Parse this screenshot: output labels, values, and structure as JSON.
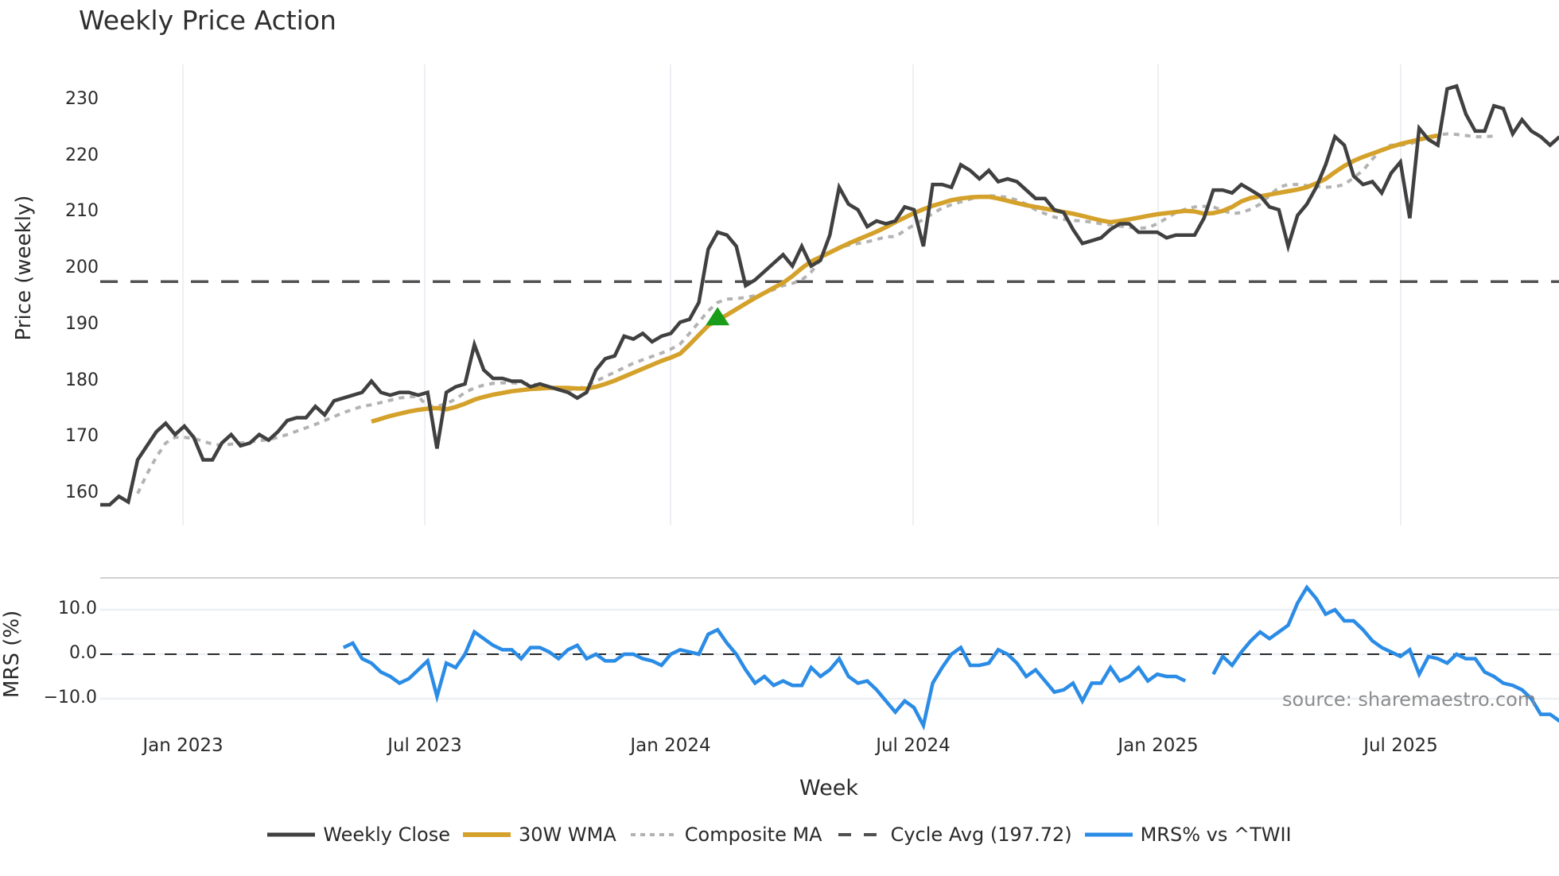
{
  "title": "Weekly Price Action",
  "source_note": "source: sharemaestro.com",
  "colors": {
    "weekly_close": "#404040",
    "wma": "#d4a12a",
    "composite_ma": "#b3b3b3",
    "cycle_avg": "#505050",
    "mrs": "#2b8ce6",
    "signal_marker": "#1a9e1a",
    "grid": "#eceff3",
    "divider": "#d0d0d0"
  },
  "price_panel": {
    "ylabel": "Price (weekly)",
    "yticks": [
      "230",
      "220",
      "210",
      "200",
      "190",
      "180",
      "170",
      "160"
    ],
    "ytick_values": [
      230,
      220,
      210,
      200,
      190,
      180,
      170,
      160
    ]
  },
  "mrs_panel": {
    "ylabel": "MRS (%)",
    "yticks": [
      "10.0",
      "0.0",
      "−10.0"
    ],
    "ytick_values": [
      10,
      0,
      -10
    ]
  },
  "xaxis": {
    "xlabel": "Week",
    "ticks": [
      "Jan 2023",
      "Jul 2023",
      "Jan 2024",
      "Jul 2024",
      "Jan 2025",
      "Jul 2025"
    ]
  },
  "legend": [
    {
      "label": "Weekly Close",
      "style": "solid",
      "color_key": "weekly_close"
    },
    {
      "label": "30W WMA",
      "style": "solid-thick",
      "color_key": "wma"
    },
    {
      "label": "Composite MA",
      "style": "dotted",
      "color_key": "composite_ma"
    },
    {
      "label": "Cycle Avg (197.72)",
      "style": "dashed",
      "color_key": "cycle_avg"
    },
    {
      "label": "MRS% vs ^TWII",
      "style": "solid",
      "color_key": "mrs"
    }
  ],
  "chart_data": [
    {
      "type": "line",
      "title": "Weekly Price Action",
      "xlabel": "Week",
      "ylabel": "Price (weekly)",
      "ylim": [
        155,
        236
      ],
      "x_start": "2022-11-01",
      "x_step": "1 week",
      "x_tick_labels": [
        "Jan 2023",
        "Jul 2023",
        "Jan 2024",
        "Jul 2024",
        "Jan 2025",
        "Jul 2025"
      ],
      "grid": "vertical only",
      "legend_position": "bottom",
      "series": [
        {
          "name": "Weekly Close",
          "start_index": 0,
          "values": [
            158,
            158,
            159.5,
            158.5,
            166,
            168.5,
            171,
            172.5,
            170.5,
            172,
            170,
            166,
            166,
            169,
            170.5,
            168.5,
            169,
            170.5,
            169.5,
            171,
            173,
            173.5,
            173.5,
            175.5,
            174,
            176.5,
            177,
            177.5,
            178,
            180,
            178,
            177.5,
            178,
            178,
            177.5,
            178,
            168,
            178,
            179,
            179.5,
            186.5,
            182,
            180.5,
            180.5,
            180,
            180,
            179,
            179.5,
            179,
            178.5,
            178,
            177,
            178,
            182,
            184,
            184.5,
            188,
            187.5,
            188.5,
            187,
            188,
            188.5,
            190.5,
            191,
            194,
            203.5,
            206.5,
            206,
            204,
            197,
            198,
            199.5,
            201,
            202.5,
            200.5,
            204,
            200.5,
            201.5,
            206,
            214.5,
            211.5,
            210.5,
            207.5,
            208.5,
            208,
            208.5,
            211,
            210.5,
            204,
            215,
            215,
            214.5,
            218.5,
            217.5,
            216,
            217.5,
            215.5,
            216,
            215.5,
            214,
            212.5,
            212.5,
            210.5,
            210,
            207,
            204.5,
            205,
            205.5,
            207,
            208,
            208,
            206.5,
            206.5,
            206.5,
            205.5,
            206,
            206,
            206,
            209,
            214,
            214,
            213.5,
            215,
            214,
            213,
            211,
            210.5,
            204,
            209.5,
            211.5,
            214.5,
            218.5,
            223.5,
            222,
            216.5,
            215,
            215.5,
            213.5,
            217,
            219,
            209,
            225,
            223,
            222,
            232,
            232.5,
            227.5,
            224.5,
            224.5,
            229,
            228.5,
            224,
            226.5,
            224.5,
            223.5,
            222,
            223.5
          ]
        },
        {
          "name": "30W WMA",
          "start_index": 29,
          "values": [
            172.8,
            173.3,
            173.8,
            174.2,
            174.6,
            174.9,
            175.1,
            175.2,
            175,
            175.4,
            176,
            176.7,
            177.2,
            177.6,
            177.9,
            178.2,
            178.4,
            178.6,
            178.7,
            178.8,
            178.8,
            178.8,
            178.7,
            178.7,
            179,
            179.5,
            180.1,
            180.8,
            181.5,
            182.2,
            182.9,
            183.6,
            184.2,
            184.9,
            186.5,
            188.2,
            189.9,
            190.8,
            191.8,
            192.8,
            193.8,
            194.8,
            195.7,
            196.6,
            197.5,
            198.7,
            200.1,
            201.3,
            202.1,
            202.9,
            203.7,
            204.5,
            205.2,
            205.9,
            206.6,
            207.4,
            208.3,
            209.1,
            209.9,
            210.6,
            211.2,
            211.7,
            212.2,
            212.5,
            212.7,
            212.8,
            212.8,
            212.5,
            212.1,
            211.7,
            211.3,
            211,
            210.7,
            210.4,
            210.1,
            209.8,
            209.4,
            209,
            208.6,
            208.3,
            208.5,
            208.8,
            209.1,
            209.4,
            209.7,
            209.9,
            210.1,
            210.3,
            210.2,
            209.8,
            209.9,
            210.3,
            211,
            212,
            212.6,
            212.9,
            213.2,
            213.5,
            213.8,
            214.1,
            214.5,
            215.2,
            216,
            217.2,
            218.3,
            219.2,
            219.9,
            220.5,
            221.1,
            221.7,
            222.2,
            222.6,
            223,
            223.4,
            223.7
          ]
        },
        {
          "name": "Composite MA",
          "start_index": 4,
          "values": [
            160,
            163.5,
            166.5,
            169,
            170,
            170,
            169.8,
            169.3,
            168.8,
            168.6,
            168.8,
            169,
            169.2,
            169.4,
            169.6,
            170,
            170.5,
            171.1,
            171.7,
            172.3,
            173,
            173.7,
            174.4,
            175,
            175.5,
            175.8,
            176.2,
            176.6,
            177,
            177.2,
            177.3,
            175.5,
            175.5,
            176,
            176.8,
            178,
            178.8,
            179.3,
            179.6,
            179.7,
            179.7,
            179.6,
            179.5,
            179.3,
            179,
            178.6,
            178.4,
            178.6,
            179.2,
            180,
            180.8,
            181.6,
            182.4,
            183.2,
            183.8,
            184.4,
            185,
            185.7,
            186.6,
            188.5,
            190.5,
            192.5,
            194,
            194.6,
            194.7,
            194.9,
            195.2,
            195.7,
            196.3,
            197,
            197.4,
            198,
            199.4,
            201.6,
            203,
            203.8,
            204.2,
            204.5,
            204.8,
            205.2,
            205.7,
            205.7,
            206.8,
            207.8,
            208.8,
            209.8,
            210.8,
            211.4,
            211.9,
            212.4,
            212.8,
            213,
            212.9,
            212.7,
            212.2,
            211.5,
            210.5,
            209.8,
            209.2,
            208.8,
            208.6,
            208.5,
            208.3,
            208,
            207.8,
            207.6,
            207.4,
            207.2,
            207.3,
            208,
            209,
            210,
            210.6,
            211,
            211.1,
            211,
            210.4,
            209.8,
            210,
            210.6,
            211.5,
            213,
            214.5,
            215,
            215,
            214.8,
            214.7,
            214.5,
            214.6,
            215,
            216.2,
            217.5,
            219.5,
            221.2,
            222,
            222,
            222.2,
            222.8,
            223.3,
            223.8,
            224,
            223.9,
            223.7,
            223.5,
            223.5,
            223.6
          ]
        },
        {
          "name": "Cycle Avg (197.72)",
          "type": "hline",
          "value": 197.72
        },
        {
          "name": "Signal marker",
          "type": "marker",
          "shape": "triangle-up",
          "index": 66,
          "value": 191.5
        }
      ]
    },
    {
      "type": "line",
      "title": "",
      "xlabel": "Week",
      "ylabel": "MRS (%)",
      "ylim": [
        -17,
        17
      ],
      "zero_line": "dashed",
      "series": [
        {
          "name": "MRS% vs ^TWII",
          "start_index": 26,
          "values": [
            1.5,
            2.5,
            -1,
            -2,
            -4,
            -5,
            -6.5,
            -5.5,
            -3.5,
            -1.5,
            -9.5,
            -2,
            -3,
            0,
            5,
            3.5,
            2,
            1,
            1,
            -1,
            1.5,
            1.5,
            0.5,
            -1,
            1,
            2,
            -1,
            0,
            -1.5,
            -1.5,
            0,
            0,
            -1,
            -1.5,
            -2.5,
            0,
            1,
            0.5,
            0,
            4.5,
            5.5,
            2.5,
            0,
            -3.5,
            -6.5,
            -5,
            -7,
            -6,
            -7,
            -7,
            -3,
            -5,
            -3.5,
            -1,
            -5,
            -6.5,
            -6,
            -8,
            -10.5,
            -13,
            -10.5,
            -12,
            -16,
            -6.5,
            -3,
            0,
            1.5,
            -2.5,
            -2.5,
            -2,
            1,
            0,
            -2,
            -5,
            -3.5,
            -6,
            -8.5,
            -8,
            -6.5,
            -10.5,
            -6.5,
            -6.5,
            -3,
            -6,
            -5,
            -3,
            -6,
            -4.5,
            -5,
            -5,
            -6,
            null,
            null,
            -4.5,
            -0.5,
            -2.5,
            0.5,
            3,
            5,
            3.5,
            5,
            6.5,
            11.5,
            15,
            12.5,
            9,
            10,
            7.5,
            7.5,
            5.5,
            3,
            1.5,
            0.5,
            -0.5,
            1,
            -4.5,
            -0.5,
            -1,
            -2,
            0,
            -1,
            -1,
            -4,
            -5,
            -6.5,
            -7,
            -8,
            -10,
            -13.5,
            -13.5,
            -15,
            -14.5
          ]
        }
      ]
    }
  ]
}
